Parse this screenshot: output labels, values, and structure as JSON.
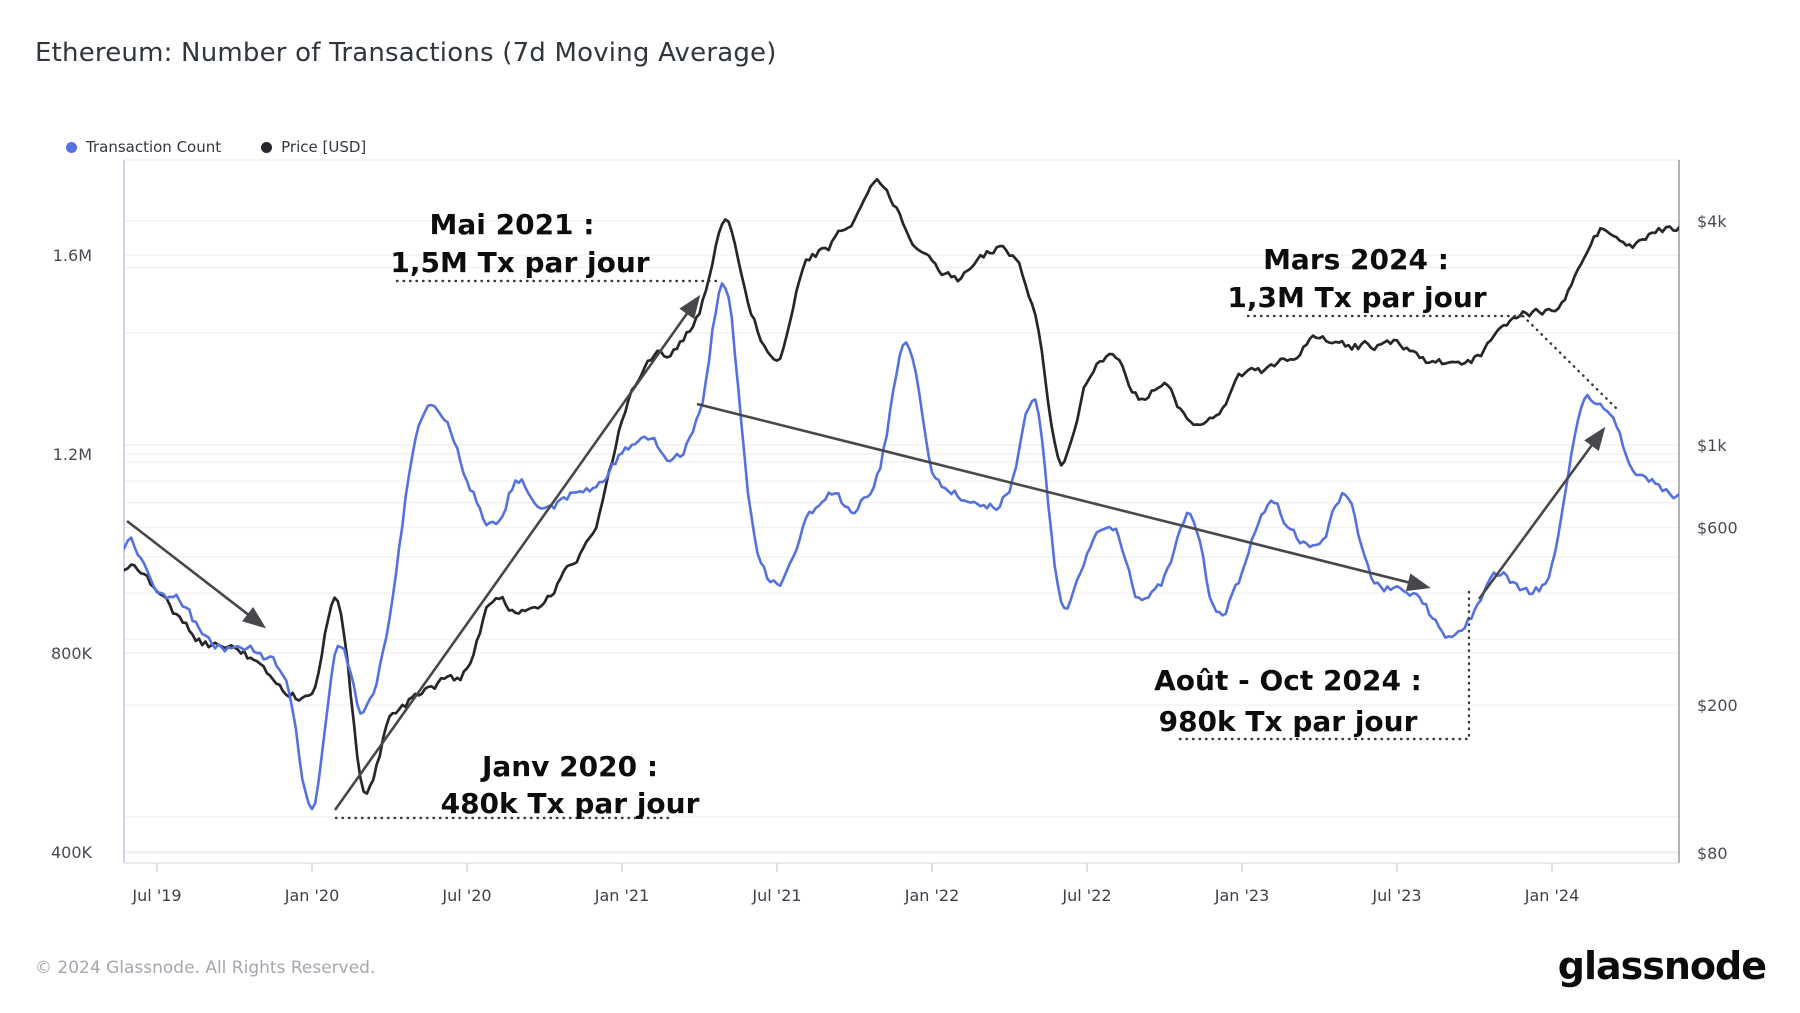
{
  "header": {
    "title": "Ethereum: Number of Transactions (7d Moving Average)"
  },
  "legend": {
    "items": [
      {
        "label": "Transaction Count",
        "color": "#5571e0"
      },
      {
        "label": "Price [USD]",
        "color": "#26262b"
      }
    ]
  },
  "annotations": {
    "mai": {
      "line1": "Mai 2021 :",
      "line2": "1,5M Tx par jour"
    },
    "mars": {
      "line1": "Mars 2024 :",
      "line2": "1,3M  Tx par jour"
    },
    "aout": {
      "line1": "Août - Oct 2024 :",
      "line2": "980k Tx par jour"
    },
    "janv": {
      "line1": "Janv 2020 :",
      "line2": "480k Tx par jour"
    }
  },
  "footer": {
    "copyright": "© 2024 Glassnode. All Rights Reserved.",
    "brand": "glassnode"
  },
  "chart_data": {
    "type": "line",
    "title": "Ethereum: Number of Transactions (7d Moving Average)",
    "x_months": [
      "2019-05",
      "2019-06",
      "2019-07",
      "2019-08",
      "2019-09",
      "2019-10",
      "2019-11",
      "2019-12",
      "2020-01",
      "2020-02",
      "2020-03",
      "2020-04",
      "2020-05",
      "2020-06",
      "2020-07",
      "2020-08",
      "2020-09",
      "2020-10",
      "2020-11",
      "2020-12",
      "2021-01",
      "2021-02",
      "2021-03",
      "2021-04",
      "2021-05",
      "2021-06",
      "2021-07",
      "2021-08",
      "2021-09",
      "2021-10",
      "2021-11",
      "2021-12",
      "2022-01",
      "2022-02",
      "2022-03",
      "2022-04",
      "2022-05",
      "2022-06",
      "2022-07",
      "2022-08",
      "2022-09",
      "2022-10",
      "2022-11",
      "2022-12",
      "2023-01",
      "2023-02",
      "2023-03",
      "2023-04",
      "2023-05",
      "2023-06",
      "2023-07",
      "2023-08",
      "2023-09",
      "2023-10",
      "2023-11",
      "2023-12",
      "2024-01",
      "2024-02",
      "2024-03",
      "2024-04",
      "2024-05",
      "2024-06"
    ],
    "x_tick_labels": [
      {
        "label": "Jul '19",
        "month": "2019-07"
      },
      {
        "label": "Jan '20",
        "month": "2020-01"
      },
      {
        "label": "Jul '20",
        "month": "2020-07"
      },
      {
        "label": "Jan '21",
        "month": "2021-01"
      },
      {
        "label": "Jul '21",
        "month": "2021-07"
      },
      {
        "label": "Jan '22",
        "month": "2022-01"
      },
      {
        "label": "Jul '22",
        "month": "2022-07"
      },
      {
        "label": "Jan '23",
        "month": "2023-01"
      },
      {
        "label": "Jul '23",
        "month": "2023-07"
      },
      {
        "label": "Jan '24",
        "month": "2024-01"
      }
    ],
    "y_left": {
      "unit": "transactions per day",
      "scale": "linear",
      "ticks": [
        {
          "label": "1.6M",
          "value": 1600
        },
        {
          "label": "1.2M",
          "value": 1200
        },
        {
          "label": "800K",
          "value": 800
        },
        {
          "label": "400K",
          "value": 400
        }
      ]
    },
    "y_right": {
      "unit": "USD",
      "scale": "log",
      "ticks": [
        {
          "label": "$4k",
          "value": 4000
        },
        {
          "label": "$1k",
          "value": 1000
        },
        {
          "label": "$600",
          "value": 600
        },
        {
          "label": "$200",
          "value": 200
        },
        {
          "label": "$80",
          "value": 80
        }
      ],
      "minor_gridlines": [
        80,
        100,
        200,
        300,
        400,
        500,
        600,
        700,
        800,
        900,
        1000,
        2000,
        3000,
        4000
      ]
    },
    "series": [
      {
        "name": "Transaction Count",
        "axis": "left",
        "color": "#5571e0",
        "unit": "thousand tx per day",
        "values": [
          940,
          1020,
          930,
          900,
          820,
          810,
          800,
          740,
          490,
          820,
          680,
          870,
          1230,
          1285,
          1150,
          1060,
          1150,
          1080,
          1120,
          1130,
          1200,
          1230,
          1190,
          1280,
          1540,
          1070,
          935,
          1050,
          1120,
          1090,
          1180,
          1430,
          1170,
          1120,
          1090,
          1130,
          1300,
          900,
          1000,
          1060,
          910,
          950,
          1080,
          880,
          960,
          1100,
          1040,
          1020,
          1120,
          950,
          930,
          900,
          830,
          880,
          960,
          920,
          980,
          1270,
          1300,
          1190,
          1140,
          1110
        ]
      },
      {
        "name": "Price [USD]",
        "axis": "right",
        "color": "#26262b",
        "unit": "USD",
        "values": [
          430,
          470,
          410,
          330,
          290,
          290,
          250,
          220,
          215,
          390,
          120,
          180,
          210,
          230,
          250,
          390,
          350,
          380,
          480,
          600,
          1150,
          1700,
          1800,
          2300,
          3900,
          2300,
          1700,
          3000,
          3400,
          4100,
          5000,
          3800,
          3100,
          2800,
          3200,
          3300,
          2200,
          900,
          1500,
          1700,
          1350,
          1450,
          1150,
          1200,
          1550,
          1600,
          1750,
          1950,
          1850,
          1850,
          1900,
          1700,
          1650,
          1700,
          2000,
          2250,
          2300,
          2900,
          3800,
          3400,
          3700,
          3900
        ]
      }
    ],
    "callouts": [
      {
        "text": "Mai 2021 : 1,5M Tx par jour",
        "month": "2021-05",
        "value_tx_per_day": 1500000
      },
      {
        "text": "Mars 2024 : 1,3M Tx par jour",
        "month": "2024-03",
        "value_tx_per_day": 1300000
      },
      {
        "text": "Août - Oct 2024 : 980k Tx par jour",
        "month": "2024-08",
        "value_tx_per_day": 980000
      },
      {
        "text": "Janv 2020 : 480k Tx par jour",
        "month": "2020-01",
        "value_tx_per_day": 480000
      }
    ],
    "legend_position": "top-left",
    "grid": true
  }
}
